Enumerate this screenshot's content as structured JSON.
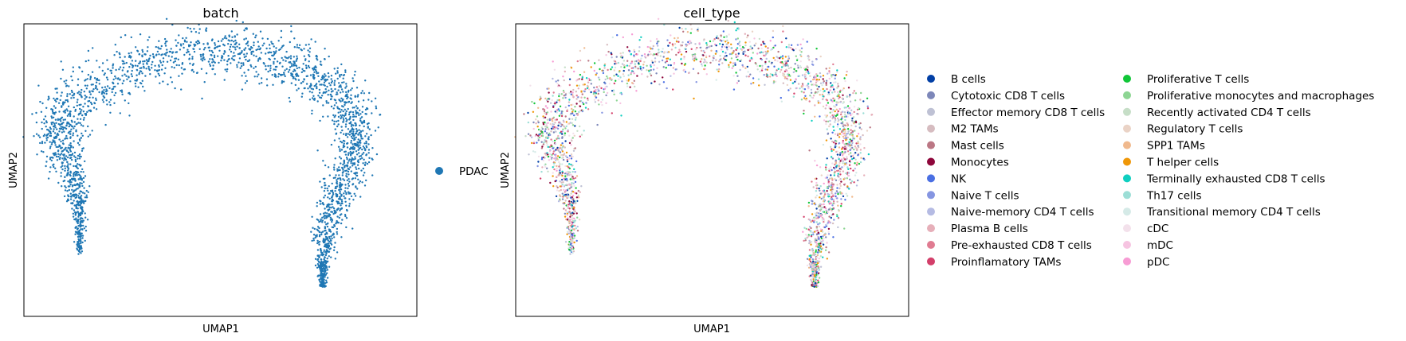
{
  "chart_data": [
    {
      "type": "scatter",
      "title": "batch",
      "xlabel": "UMAP1",
      "ylabel": "UMAP2",
      "grid": false,
      "ticks": false,
      "legend_placement": "right",
      "legend": [
        {
          "name": "PDAC",
          "color": "#1f77b4"
        }
      ]
    },
    {
      "type": "scatter",
      "title": "cell_type",
      "xlabel": "UMAP1",
      "ylabel": "UMAP2",
      "grid": false,
      "ticks": false,
      "legend_placement": "right",
      "legend": [
        {
          "name": "B cells",
          "color": "#023fa5"
        },
        {
          "name": "Cytotoxic CD8 T cells",
          "color": "#7d87b9"
        },
        {
          "name": "Effector memory CD8 T cells",
          "color": "#bec1d4"
        },
        {
          "name": "M2 TAMs",
          "color": "#d6bcc0"
        },
        {
          "name": "Mast cells",
          "color": "#bb7784"
        },
        {
          "name": "Monocytes",
          "color": "#8e063b"
        },
        {
          "name": "NK",
          "color": "#4a6fe3"
        },
        {
          "name": "Naive T cells",
          "color": "#8595e1"
        },
        {
          "name": "Naive-memory CD4 T cells",
          "color": "#b5bbe3"
        },
        {
          "name": "Plasma B cells",
          "color": "#e6afb9"
        },
        {
          "name": "Pre-exhausted CD8 T cells",
          "color": "#e07b91"
        },
        {
          "name": "Proinflamatory TAMs",
          "color": "#d33f6a"
        },
        {
          "name": "Proliferative T cells",
          "color": "#11c638"
        },
        {
          "name": "Proliferative monocytes and macrophages",
          "color": "#8dd593"
        },
        {
          "name": "Recently activated CD4 T cells",
          "color": "#c6dec7"
        },
        {
          "name": "Regulatory T cells",
          "color": "#ead3c6"
        },
        {
          "name": "SPP1 TAMs",
          "color": "#f0b98d"
        },
        {
          "name": "T helper cells",
          "color": "#ef9708"
        },
        {
          "name": "Terminally exhausted CD8 T cells",
          "color": "#0fcfc0"
        },
        {
          "name": "Th17 cells",
          "color": "#9cded6"
        },
        {
          "name": "Transitional memory CD4 T cells",
          "color": "#d5eae7"
        },
        {
          "name": "cDC",
          "color": "#f3e1eb"
        },
        {
          "name": "mDC",
          "color": "#f6c4e1"
        },
        {
          "name": "pDC",
          "color": "#f79cd4"
        }
      ]
    }
  ]
}
